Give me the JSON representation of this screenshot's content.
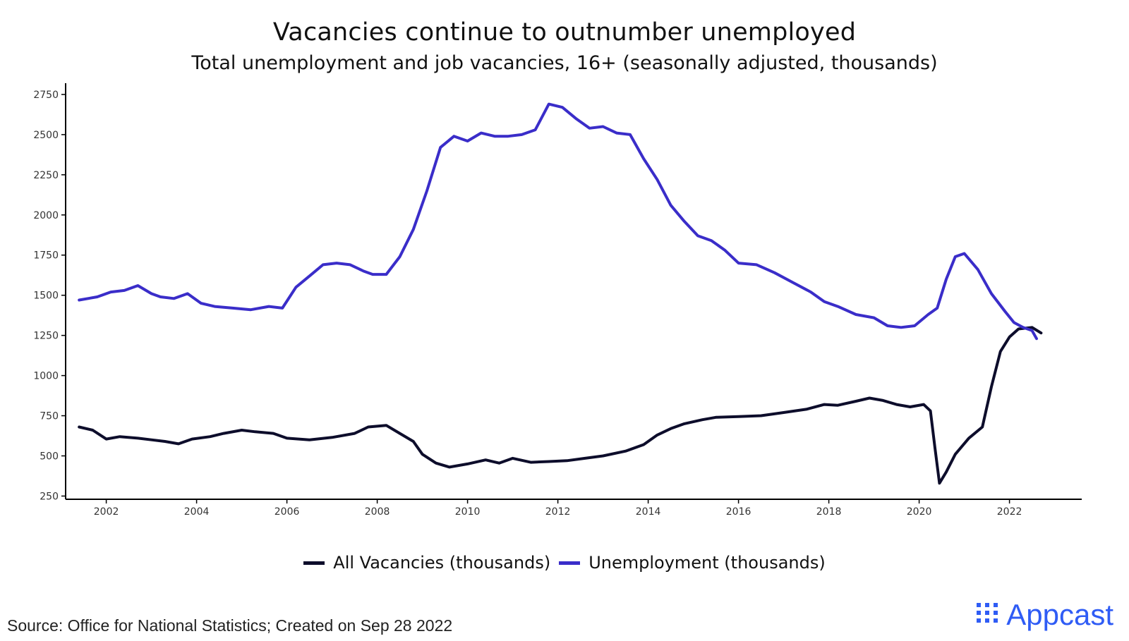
{
  "chart_data": {
    "type": "line",
    "title": "Vacancies continue to outnumber unemployed",
    "subtitle": "Total unemployment and job vacancies, 16+ (seasonally adjusted, thousands)",
    "xlabel": "",
    "ylabel": "",
    "xlim": [
      2001.1,
      2023.6
    ],
    "ylim": [
      230,
      2820
    ],
    "x_ticks": [
      2002,
      2004,
      2006,
      2008,
      2010,
      2012,
      2014,
      2016,
      2018,
      2020,
      2022
    ],
    "y_ticks": [
      250,
      500,
      750,
      1000,
      1250,
      1500,
      1750,
      2000,
      2250,
      2500,
      2750
    ],
    "grid": false,
    "legend_position": "bottom",
    "series": [
      {
        "name": "All Vacancies (thousands)",
        "color": "#0d0d2b",
        "points": [
          [
            2001.4,
            680
          ],
          [
            2001.7,
            660
          ],
          [
            2002.0,
            605
          ],
          [
            2002.3,
            620
          ],
          [
            2002.7,
            610
          ],
          [
            2003.0,
            600
          ],
          [
            2003.3,
            590
          ],
          [
            2003.6,
            575
          ],
          [
            2003.9,
            605
          ],
          [
            2004.3,
            620
          ],
          [
            2004.6,
            640
          ],
          [
            2005.0,
            660
          ],
          [
            2005.3,
            650
          ],
          [
            2005.7,
            640
          ],
          [
            2006.0,
            610
          ],
          [
            2006.5,
            600
          ],
          [
            2007.0,
            615
          ],
          [
            2007.5,
            640
          ],
          [
            2007.8,
            680
          ],
          [
            2008.2,
            690
          ],
          [
            2008.5,
            640
          ],
          [
            2008.8,
            590
          ],
          [
            2009.0,
            510
          ],
          [
            2009.3,
            455
          ],
          [
            2009.6,
            430
          ],
          [
            2010.0,
            450
          ],
          [
            2010.4,
            475
          ],
          [
            2010.7,
            455
          ],
          [
            2011.0,
            485
          ],
          [
            2011.4,
            460
          ],
          [
            2011.8,
            465
          ],
          [
            2012.2,
            470
          ],
          [
            2012.6,
            485
          ],
          [
            2013.0,
            500
          ],
          [
            2013.5,
            530
          ],
          [
            2013.9,
            570
          ],
          [
            2014.2,
            630
          ],
          [
            2014.5,
            670
          ],
          [
            2014.8,
            700
          ],
          [
            2015.2,
            725
          ],
          [
            2015.5,
            740
          ],
          [
            2016.0,
            745
          ],
          [
            2016.5,
            750
          ],
          [
            2017.0,
            770
          ],
          [
            2017.5,
            790
          ],
          [
            2017.9,
            820
          ],
          [
            2018.2,
            815
          ],
          [
            2018.6,
            840
          ],
          [
            2018.9,
            860
          ],
          [
            2019.2,
            845
          ],
          [
            2019.5,
            820
          ],
          [
            2019.8,
            805
          ],
          [
            2020.1,
            820
          ],
          [
            2020.25,
            780
          ],
          [
            2020.35,
            550
          ],
          [
            2020.45,
            330
          ],
          [
            2020.6,
            400
          ],
          [
            2020.8,
            510
          ],
          [
            2021.1,
            610
          ],
          [
            2021.4,
            680
          ],
          [
            2021.6,
            930
          ],
          [
            2021.8,
            1150
          ],
          [
            2022.0,
            1240
          ],
          [
            2022.2,
            1290
          ],
          [
            2022.5,
            1300
          ],
          [
            2022.7,
            1265
          ]
        ]
      },
      {
        "name": "Unemployment (thousands)",
        "color": "#3a2dc9",
        "points": [
          [
            2001.4,
            1470
          ],
          [
            2001.8,
            1490
          ],
          [
            2002.1,
            1520
          ],
          [
            2002.4,
            1530
          ],
          [
            2002.7,
            1560
          ],
          [
            2003.0,
            1510
          ],
          [
            2003.2,
            1490
          ],
          [
            2003.5,
            1480
          ],
          [
            2003.8,
            1510
          ],
          [
            2004.1,
            1450
          ],
          [
            2004.4,
            1430
          ],
          [
            2004.8,
            1420
          ],
          [
            2005.2,
            1410
          ],
          [
            2005.6,
            1430
          ],
          [
            2005.9,
            1420
          ],
          [
            2006.2,
            1550
          ],
          [
            2006.5,
            1620
          ],
          [
            2006.8,
            1690
          ],
          [
            2007.1,
            1700
          ],
          [
            2007.4,
            1690
          ],
          [
            2007.7,
            1650
          ],
          [
            2007.9,
            1630
          ],
          [
            2008.2,
            1630
          ],
          [
            2008.5,
            1740
          ],
          [
            2008.8,
            1910
          ],
          [
            2009.1,
            2150
          ],
          [
            2009.4,
            2420
          ],
          [
            2009.7,
            2490
          ],
          [
            2010.0,
            2460
          ],
          [
            2010.3,
            2510
          ],
          [
            2010.6,
            2490
          ],
          [
            2010.9,
            2490
          ],
          [
            2011.2,
            2500
          ],
          [
            2011.5,
            2530
          ],
          [
            2011.8,
            2690
          ],
          [
            2012.1,
            2670
          ],
          [
            2012.4,
            2600
          ],
          [
            2012.7,
            2540
          ],
          [
            2013.0,
            2550
          ],
          [
            2013.3,
            2510
          ],
          [
            2013.6,
            2500
          ],
          [
            2013.9,
            2350
          ],
          [
            2014.2,
            2220
          ],
          [
            2014.5,
            2060
          ],
          [
            2014.8,
            1960
          ],
          [
            2015.1,
            1870
          ],
          [
            2015.4,
            1840
          ],
          [
            2015.7,
            1780
          ],
          [
            2016.0,
            1700
          ],
          [
            2016.4,
            1690
          ],
          [
            2016.8,
            1640
          ],
          [
            2017.2,
            1580
          ],
          [
            2017.6,
            1520
          ],
          [
            2017.9,
            1460
          ],
          [
            2018.2,
            1430
          ],
          [
            2018.6,
            1380
          ],
          [
            2019.0,
            1360
          ],
          [
            2019.3,
            1310
          ],
          [
            2019.6,
            1300
          ],
          [
            2019.9,
            1310
          ],
          [
            2020.2,
            1380
          ],
          [
            2020.4,
            1420
          ],
          [
            2020.6,
            1600
          ],
          [
            2020.8,
            1740
          ],
          [
            2021.0,
            1760
          ],
          [
            2021.3,
            1660
          ],
          [
            2021.6,
            1510
          ],
          [
            2021.9,
            1400
          ],
          [
            2022.1,
            1330
          ],
          [
            2022.3,
            1300
          ],
          [
            2022.5,
            1280
          ],
          [
            2022.6,
            1230
          ]
        ]
      }
    ]
  },
  "footer": {
    "source": "Source: Office for National Statistics; Created on Sep 28 2022",
    "brand": "Appcast"
  }
}
